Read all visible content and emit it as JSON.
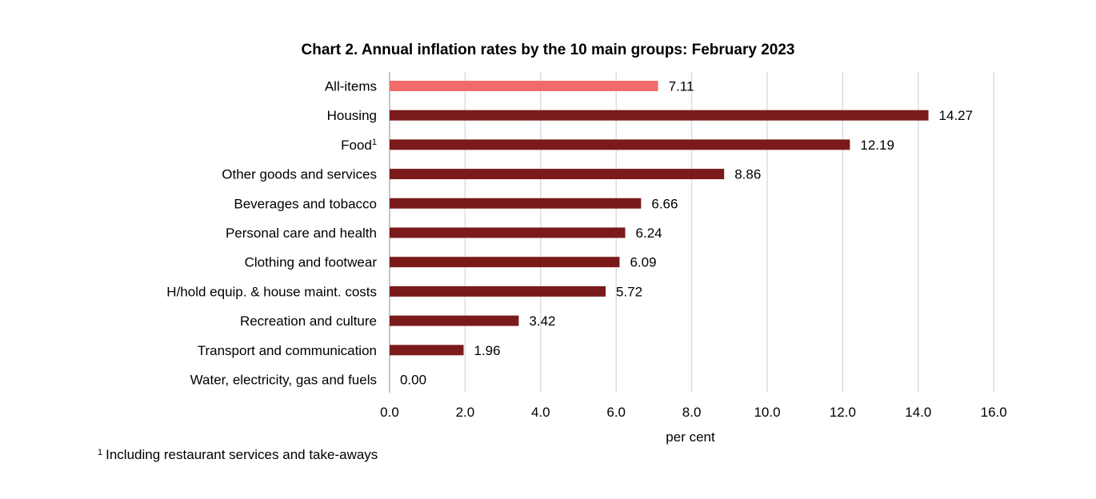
{
  "chart_data": {
    "type": "bar",
    "orientation": "horizontal",
    "title": "Chart 2.  Annual inflation rates by the 10 main groups: February 2023",
    "xlabel": "per cent",
    "ylabel": "",
    "xlim": [
      0,
      16
    ],
    "x_ticks": [
      "0.0",
      "2.0",
      "4.0",
      "6.0",
      "8.0",
      "10.0",
      "12.0",
      "14.0",
      "16.0"
    ],
    "grid": "vertical",
    "categories": [
      "All-items",
      "Housing",
      "Food",
      "Other goods and services",
      "Beverages and tobacco",
      "Personal care and health",
      "Clothing and footwear",
      "H/hold equip. & house maint. costs",
      "Recreation and culture",
      "Transport and communication",
      "Water, electricity, gas and fuels"
    ],
    "category_superscripts": [
      "",
      "",
      "1",
      "",
      "",
      "",
      "",
      "",
      "",
      "",
      ""
    ],
    "values": [
      7.11,
      14.27,
      12.19,
      8.86,
      6.66,
      6.24,
      6.09,
      5.72,
      3.42,
      1.96,
      0.0
    ],
    "value_labels": [
      "7.11",
      "14.27",
      "12.19",
      "8.86",
      "6.66",
      "6.24",
      "6.09",
      "5.72",
      "3.42",
      "1.96",
      "0.00"
    ],
    "colors": {
      "highlight": "#f26b6b",
      "bar": "#7b1a1a",
      "grid": "#d9d9d9",
      "axis": "#a6a6a6"
    },
    "highlight_index": 0,
    "footnote": {
      "marker": "1",
      "text": "Including restaurant services and take-aways"
    }
  }
}
